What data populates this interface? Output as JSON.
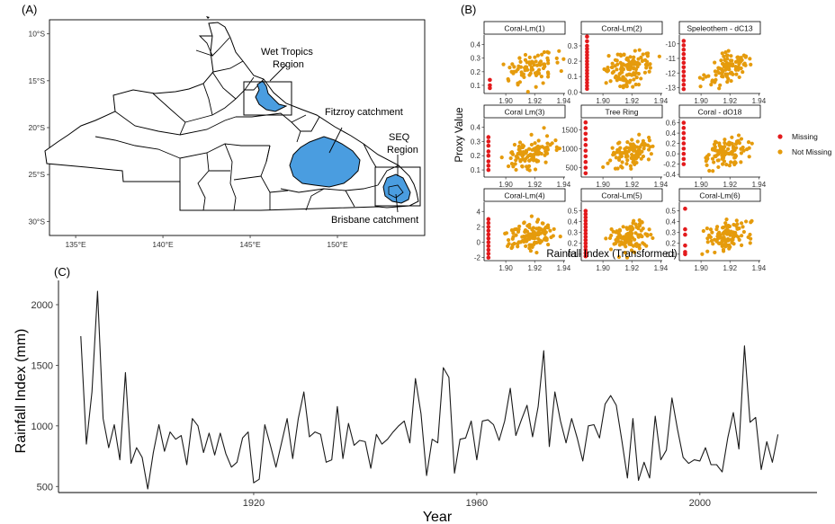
{
  "panels": {
    "a": {
      "tag": "(A)"
    },
    "b": {
      "tag": "(B)"
    },
    "c": {
      "tag": "(C)"
    }
  },
  "chart_data": [
    {
      "panel": "A",
      "type": "map",
      "lon_ticks": [
        "135°E",
        "140°E",
        "145°E",
        "150°E"
      ],
      "lon_values": [
        135,
        140,
        145,
        150
      ],
      "lat_ticks": [
        "10°S",
        "15°S",
        "20°S",
        "25°S",
        "30°S"
      ],
      "lat_values": [
        -10,
        -15,
        -20,
        -25,
        -30
      ],
      "xlim": [
        133.5,
        155
      ],
      "ylim": [
        -31.5,
        -8.5
      ],
      "fill_color": "#4a9de0",
      "annotations": [
        {
          "text": [
            "Wet Tropics",
            "Region"
          ],
          "anchor": [
            145.7,
            -15.8
          ]
        },
        {
          "text": [
            "Fitzroy catchment"
          ],
          "anchor": [
            149.0,
            -23.0
          ]
        },
        {
          "text": [
            "SEQ",
            "Region"
          ],
          "anchor": [
            152.8,
            -24.6
          ]
        },
        {
          "text": [
            "Brisbane catchment"
          ],
          "anchor": [
            152.4,
            -27.6
          ]
        }
      ],
      "boxes": [
        {
          "name": "Wet Tropics Region",
          "lon": [
            144.4,
            146.8
          ],
          "lat": [
            -15.5,
            -18.8
          ]
        },
        {
          "name": "SEQ Region",
          "lon": [
            151.5,
            153.7
          ],
          "lat": [
            -25.0,
            -28.4
          ]
        }
      ]
    },
    {
      "panel": "B",
      "type": "scatter",
      "xlabel": "Rainfall Index (Transformed)",
      "ylabel": "Proxy Value",
      "x_ticks": [
        1.9,
        1.92,
        1.94
      ],
      "x_tick_labels": [
        "1.90",
        "1.92",
        "1.94"
      ],
      "xlim": [
        1.885,
        1.941
      ],
      "legend": {
        "position": "right",
        "items": [
          {
            "label": "Missing",
            "color": "#e31a1c"
          },
          {
            "label": "Not Missing",
            "color": "#e59b0c"
          }
        ]
      },
      "facets": [
        {
          "title": "Coral-Lm(1)",
          "ylim": [
            0.04,
            0.47
          ],
          "ticks": [
            0.1,
            0.2,
            0.3,
            0.4
          ],
          "tick_labels": [
            "0.1",
            "0.2",
            "0.3",
            "0.4"
          ],
          "missing_x": 1.889,
          "missing_y": [
            0.14,
            0.1,
            0.08
          ],
          "n": 80
        },
        {
          "title": "Coral-Lm(2)",
          "ylim": [
            -0.01,
            0.37
          ],
          "ticks": [
            0.0,
            0.1,
            0.2,
            0.3
          ],
          "tick_labels": [
            "0.0",
            "0.1",
            "0.2",
            "0.3"
          ],
          "missing_x": 1.889,
          "missing_y": [
            0.02,
            0.04,
            0.06,
            0.08,
            0.1,
            0.12,
            0.14,
            0.16,
            0.18,
            0.2,
            0.22,
            0.24,
            0.26,
            0.28,
            0.3,
            0.33,
            0.36
          ],
          "n": 120
        },
        {
          "title": "Speleothem - dC13",
          "ylim": [
            -13.4,
            -9.4
          ],
          "ticks": [
            -10,
            -11,
            -12,
            -13
          ],
          "tick_labels": [
            "-10",
            "-11",
            "-12",
            "-13"
          ],
          "missing_x": 1.888,
          "missing_y": [
            -9.8,
            -10.1,
            -10.4,
            -10.7,
            -11.0,
            -11.3,
            -11.6,
            -11.9,
            -12.2,
            -12.5,
            -12.8,
            -13.1
          ],
          "n": 100
        },
        {
          "title": "Coral Lm(3)",
          "ylim": [
            0.05,
            0.46
          ],
          "ticks": [
            0.1,
            0.2,
            0.3,
            0.4
          ],
          "tick_labels": [
            "0.1",
            "0.2",
            "0.3",
            "0.4"
          ],
          "missing_x": 1.888,
          "missing_y": [
            0.1,
            0.13,
            0.16,
            0.2,
            0.23,
            0.27,
            0.3,
            0.33
          ],
          "n": 110
        },
        {
          "title": "Tree Ring",
          "ylim": [
            250,
            1800
          ],
          "ticks": [
            500,
            1000,
            1500
          ],
          "tick_labels": [
            "500",
            "1000",
            "1500"
          ],
          "missing_x": 1.888,
          "missing_y": [
            350,
            500,
            650,
            800,
            950,
            1100,
            1250,
            1400,
            1550,
            1700
          ],
          "n": 100
        },
        {
          "title": "Coral - dO18",
          "ylim": [
            -0.45,
            0.68
          ],
          "ticks": [
            -0.4,
            -0.2,
            0.0,
            0.2,
            0.4,
            0.6
          ],
          "tick_labels": [
            "-0.4",
            "-0.2",
            "0.0",
            "0.2",
            "0.4",
            "0.6"
          ],
          "missing_x": 1.888,
          "missing_y": [
            -0.2,
            -0.1,
            0.0,
            0.1,
            0.2,
            0.3,
            0.4,
            0.5,
            0.6
          ],
          "n": 100
        },
        {
          "title": "Coral-Lm(4)",
          "ylim": [
            -2.4,
            5.2
          ],
          "ticks": [
            -2,
            0,
            2,
            4
          ],
          "tick_labels": [
            "-2",
            "0",
            "2",
            "4"
          ],
          "missing_x": 1.888,
          "missing_y": [
            -2.0,
            -1.5,
            -1.0,
            -0.5,
            0.0,
            0.5,
            1.0,
            1.5,
            2.0,
            2.5,
            3.0
          ],
          "n": 120
        },
        {
          "title": "Coral-Lm(5)",
          "ylim": [
            0.04,
            0.58
          ],
          "ticks": [
            0.1,
            0.2,
            0.3,
            0.4,
            0.5
          ],
          "tick_labels": [
            "0.1",
            "0.2",
            "0.3",
            "0.4",
            "0.5"
          ],
          "missing_x": 1.888,
          "missing_y": [
            0.08,
            0.11,
            0.14,
            0.17,
            0.2,
            0.23,
            0.26,
            0.29,
            0.32,
            0.35,
            0.38,
            0.41,
            0.44,
            0.47,
            0.5
          ],
          "n": 110
        },
        {
          "title": "Coral-Lm(6)",
          "ylim": [
            0.04,
            0.58
          ],
          "ticks": [
            0.1,
            0.2,
            0.3,
            0.4,
            0.5
          ],
          "tick_labels": [
            "0.1",
            "0.2",
            "0.3",
            "0.4",
            "0.5"
          ],
          "missing_x": 1.889,
          "missing_y": [
            0.52,
            0.33,
            0.28,
            0.18,
            0.12,
            0.1
          ],
          "n": 110
        }
      ]
    },
    {
      "panel": "C",
      "type": "line",
      "xlabel": "Year",
      "ylabel": "Rainfall Index (mm)",
      "xlim": [
        1885,
        2021
      ],
      "ylim": [
        450,
        2200
      ],
      "x_ticks": [
        1920,
        1960,
        2000
      ],
      "x_tick_labels": [
        "1920",
        "1960",
        "2000"
      ],
      "y_ticks": [
        500,
        1000,
        1500,
        2000
      ],
      "y_tick_labels": [
        "500",
        "1000",
        "1500",
        "2000"
      ],
      "line_color": "#1a1a1a",
      "x_start": 1889,
      "values": [
        1740,
        850,
        1280,
        2110,
        1060,
        820,
        1010,
        720,
        1440,
        690,
        820,
        740,
        480,
        780,
        1010,
        790,
        950,
        890,
        920,
        680,
        1060,
        1000,
        780,
        940,
        760,
        940,
        770,
        660,
        700,
        900,
        950,
        530,
        560,
        1010,
        840,
        660,
        860,
        1060,
        730,
        1060,
        1280,
        910,
        950,
        930,
        700,
        720,
        1160,
        730,
        1020,
        840,
        880,
        870,
        650,
        930,
        850,
        890,
        950,
        1000,
        1040,
        860,
        1390,
        1100,
        590,
        890,
        860,
        1480,
        1400,
        610,
        890,
        900,
        1040,
        720,
        1040,
        1050,
        1010,
        880,
        1040,
        1310,
        920,
        1050,
        1170,
        910,
        1160,
        1620,
        830,
        1280,
        1040,
        860,
        1060,
        900,
        710,
        1000,
        1010,
        900,
        1180,
        1250,
        1170,
        880,
        570,
        1060,
        550,
        700,
        570,
        1080,
        720,
        800,
        1230,
        970,
        740,
        690,
        720,
        710,
        820,
        680,
        680,
        620,
        900,
        1110,
        810,
        1660,
        1030,
        1070,
        640,
        870,
        700,
        930
      ]
    }
  ]
}
